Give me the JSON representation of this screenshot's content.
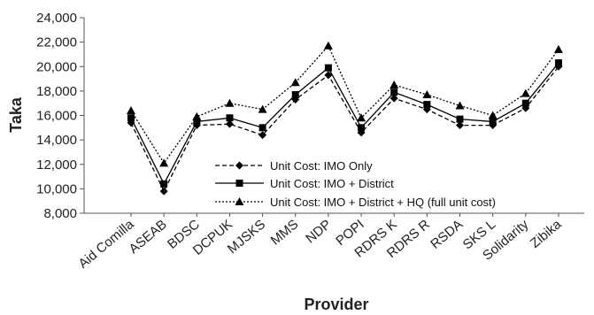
{
  "chart_data": {
    "type": "line",
    "xlabel": "Provider",
    "ylabel": "Taka",
    "ylim": [
      8000,
      24000
    ],
    "yticks": [
      8000,
      10000,
      12000,
      14000,
      16000,
      18000,
      20000,
      22000,
      24000
    ],
    "ytick_labels": [
      "8,000",
      "10,000",
      "12,000",
      "14,000",
      "16,000",
      "18,000",
      "20,000",
      "22,000",
      "24,000"
    ],
    "grid": false,
    "legend_position": "bottom-right",
    "categories": [
      "Aid Comilla",
      "ASEAB",
      "BDSC",
      "DCPUK",
      "MJSKS",
      "MMS",
      "NDP",
      "POPI",
      "RDRS K",
      "RDRS R",
      "RSDA",
      "SKS L",
      "Solidarity",
      "Zibika"
    ],
    "series": [
      {
        "name": "Unit Cost: IMO Only",
        "marker": "diamond",
        "dash": "dashed",
        "values": [
          15400,
          9800,
          15200,
          15300,
          14400,
          17300,
          19300,
          14600,
          17400,
          16500,
          15200,
          15200,
          16600,
          20000
        ]
      },
      {
        "name": "Unit Cost: IMO + District",
        "marker": "square",
        "dash": "solid",
        "values": [
          15800,
          10400,
          15500,
          15800,
          15000,
          17700,
          19900,
          15000,
          17900,
          16900,
          15700,
          15500,
          17000,
          20300
        ]
      },
      {
        "name": "Unit Cost: IMO + District + HQ (full unit cost)",
        "marker": "triangle",
        "dash": "dotted",
        "values": [
          16400,
          12100,
          15900,
          17000,
          16500,
          18700,
          21700,
          15800,
          18500,
          17700,
          16800,
          16000,
          17800,
          21400
        ]
      }
    ]
  }
}
